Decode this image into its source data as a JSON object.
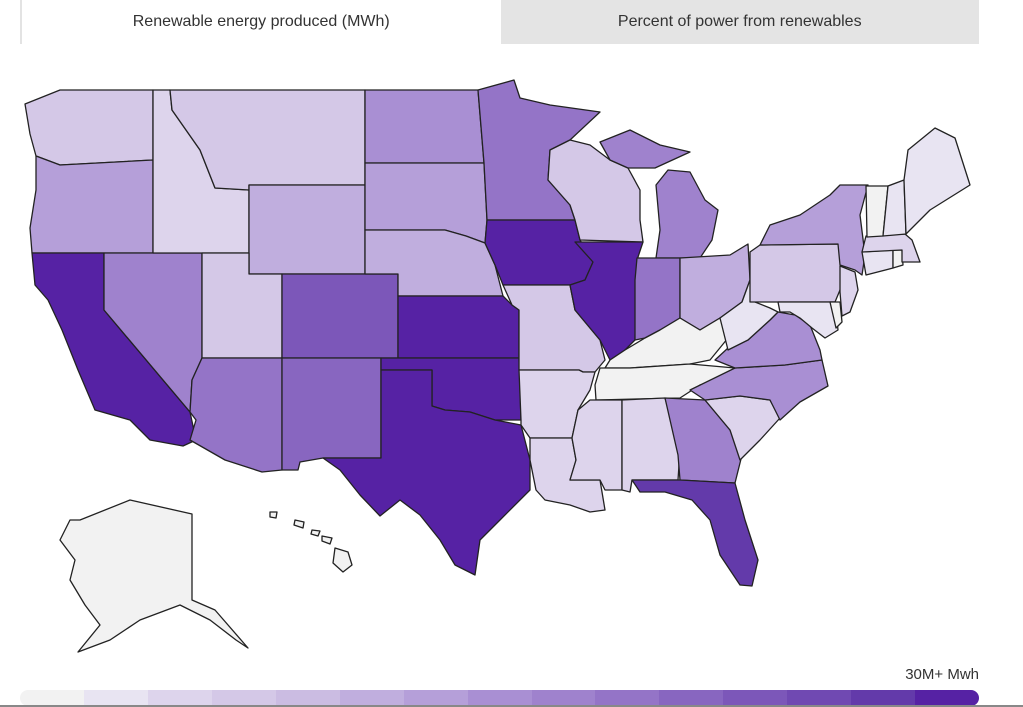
{
  "tabs": [
    {
      "label": "Renewable energy produced (MWh)",
      "active": true
    },
    {
      "label": "Percent of power from renewables",
      "active": false
    }
  ],
  "legend": {
    "max_label": "30M+ Mwh",
    "colors": [
      "#f2f2f2",
      "#e8e4f2",
      "#ddd4ec",
      "#d4c8e7",
      "#cbbce2",
      "#c0aede",
      "#b59fd9",
      "#a98fd3",
      "#9f82cd",
      "#9474c7",
      "#8866c0",
      "#7c57b9",
      "#7049b2",
      "#633aaa",
      "#5622a4"
    ]
  },
  "states": [
    {
      "id": "WA",
      "level": 3
    },
    {
      "id": "OR",
      "level": 6
    },
    {
      "id": "CA",
      "level": 14
    },
    {
      "id": "NV",
      "level": 8
    },
    {
      "id": "ID",
      "level": 2
    },
    {
      "id": "MT",
      "level": 3
    },
    {
      "id": "WY",
      "level": 5
    },
    {
      "id": "UT",
      "level": 3
    },
    {
      "id": "AZ",
      "level": 9
    },
    {
      "id": "CO",
      "level": 11
    },
    {
      "id": "NM",
      "level": 10
    },
    {
      "id": "ND",
      "level": 7
    },
    {
      "id": "SD",
      "level": 6
    },
    {
      "id": "NE",
      "level": 5
    },
    {
      "id": "KS",
      "level": 14
    },
    {
      "id": "OK",
      "level": 14
    },
    {
      "id": "TX",
      "level": 14
    },
    {
      "id": "MN",
      "level": 9
    },
    {
      "id": "IA",
      "level": 14
    },
    {
      "id": "MO",
      "level": 3
    },
    {
      "id": "AR",
      "level": 2
    },
    {
      "id": "LA",
      "level": 2
    },
    {
      "id": "WI",
      "level": 3
    },
    {
      "id": "IL",
      "level": 14
    },
    {
      "id": "MI",
      "level": 8
    },
    {
      "id": "IN",
      "level": 9
    },
    {
      "id": "OH",
      "level": 5
    },
    {
      "id": "KY",
      "level": 0
    },
    {
      "id": "TN",
      "level": 0
    },
    {
      "id": "MS",
      "level": 2
    },
    {
      "id": "AL",
      "level": 2
    },
    {
      "id": "GA",
      "level": 8
    },
    {
      "id": "FL",
      "level": 13
    },
    {
      "id": "SC",
      "level": 2
    },
    {
      "id": "NC",
      "level": 7
    },
    {
      "id": "VA",
      "level": 7
    },
    {
      "id": "WV",
      "level": 1
    },
    {
      "id": "PA",
      "level": 3
    },
    {
      "id": "NY",
      "level": 6
    },
    {
      "id": "MD",
      "level": 1
    },
    {
      "id": "DE",
      "level": 0
    },
    {
      "id": "NJ",
      "level": 2
    },
    {
      "id": "CT",
      "level": 1
    },
    {
      "id": "RI",
      "level": 0
    },
    {
      "id": "MA",
      "level": 2
    },
    {
      "id": "VT",
      "level": 0
    },
    {
      "id": "NH",
      "level": 1
    },
    {
      "id": "ME",
      "level": 1
    },
    {
      "id": "AK",
      "level": 0
    },
    {
      "id": "HI",
      "level": 0
    }
  ]
}
